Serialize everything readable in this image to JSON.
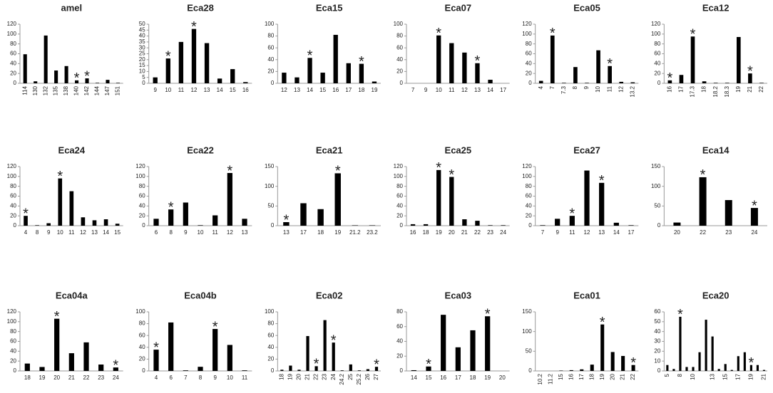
{
  "chart_data": [
    {
      "type": "bar",
      "title": "amel",
      "categories": [
        "114",
        "130",
        "132",
        "135",
        "138",
        "140",
        "142",
        "144",
        "147",
        "151"
      ],
      "values": [
        59,
        4,
        97,
        26,
        35,
        6,
        10,
        1,
        7,
        1
      ],
      "ylim": [
        0,
        120
      ],
      "yticks": [
        0,
        20,
        40,
        60,
        80,
        100,
        120
      ],
      "color": "#000000",
      "annotations": [
        {
          "text": "*",
          "x": "140"
        },
        {
          "text": "*",
          "x": "142"
        }
      ]
    },
    {
      "type": "bar",
      "title": "Eca28",
      "categories": [
        "9",
        "10",
        "11",
        "12",
        "13",
        "14",
        "15",
        "16"
      ],
      "values": [
        5,
        21,
        35,
        46,
        34,
        4,
        12,
        1
      ],
      "ylim": [
        0,
        50
      ],
      "yticks": [
        0,
        5,
        10,
        15,
        20,
        25,
        30,
        35,
        40,
        45,
        50
      ],
      "color": "#000000",
      "annotations": [
        {
          "text": "*",
          "x": "10"
        },
        {
          "text": "*",
          "x": "12"
        }
      ]
    },
    {
      "type": "bar",
      "title": "Eca15",
      "categories": [
        "12",
        "13",
        "14",
        "15",
        "16",
        "17",
        "18",
        "19"
      ],
      "values": [
        18,
        10,
        43,
        18,
        82,
        34,
        33,
        3
      ],
      "ylim": [
        0,
        100
      ],
      "yticks": [
        0,
        20,
        40,
        60,
        80,
        100
      ],
      "color": "#000000",
      "annotations": [
        {
          "text": "*",
          "x": "14"
        },
        {
          "text": "*",
          "x": "18"
        }
      ]
    },
    {
      "type": "bar",
      "title": "Eca07",
      "categories": [
        "7",
        "9",
        "10",
        "11",
        "12",
        "13",
        "14",
        "17"
      ],
      "values": [
        0,
        0,
        81,
        68,
        52,
        34,
        6,
        0
      ],
      "ylim": [
        0,
        100
      ],
      "yticks": [
        0,
        20,
        40,
        60,
        80,
        100
      ],
      "color": "#000000",
      "annotations": [
        {
          "text": "*",
          "x": "10"
        },
        {
          "text": "*",
          "x": "13"
        }
      ]
    },
    {
      "type": "bar",
      "title": "Eca05",
      "categories": [
        "4",
        "7",
        "7.3",
        "8",
        "9",
        "10",
        "11",
        "12",
        "13.2"
      ],
      "values": [
        5,
        97,
        1,
        33,
        1,
        67,
        35,
        3,
        2
      ],
      "ylim": [
        0,
        120
      ],
      "yticks": [
        0,
        20,
        40,
        60,
        80,
        100,
        120
      ],
      "color": "#000000",
      "annotations": [
        {
          "text": "*",
          "x": "7"
        },
        {
          "text": "*",
          "x": "11"
        }
      ]
    },
    {
      "type": "bar",
      "title": "Eca12",
      "categories": [
        "16",
        "17",
        "17.3",
        "18",
        "18.2",
        "18.3",
        "19",
        "21",
        "22"
      ],
      "values": [
        6,
        17,
        95,
        4,
        1,
        1,
        94,
        20,
        1
      ],
      "ylim": [
        0,
        120
      ],
      "yticks": [
        0,
        20,
        40,
        60,
        80,
        100,
        120
      ],
      "color": "#000000",
      "annotations": [
        {
          "text": "*",
          "x": "16"
        },
        {
          "text": "*",
          "x": "17.3"
        },
        {
          "text": "*",
          "x": "21"
        }
      ]
    },
    {
      "type": "bar",
      "title": "Eca24",
      "categories": [
        "4",
        "8",
        "9",
        "10",
        "11",
        "12",
        "13",
        "14",
        "15"
      ],
      "values": [
        20,
        1,
        5,
        96,
        70,
        17,
        11,
        13,
        4
      ],
      "ylim": [
        0,
        120
      ],
      "yticks": [
        0,
        20,
        40,
        60,
        80,
        100,
        120
      ],
      "color": "#000000",
      "annotations": [
        {
          "text": "*",
          "x": "4"
        },
        {
          "text": "*",
          "x": "10"
        }
      ]
    },
    {
      "type": "bar",
      "title": "Eca22",
      "categories": [
        "6",
        "8",
        "9",
        "10",
        "11",
        "12",
        "13"
      ],
      "values": [
        14,
        33,
        47,
        1,
        21,
        107,
        14
      ],
      "ylim": [
        0,
        120
      ],
      "yticks": [
        0,
        20,
        40,
        60,
        80,
        100,
        120
      ],
      "color": "#000000",
      "annotations": [
        {
          "text": "*",
          "x": "8"
        },
        {
          "text": "*",
          "x": "12"
        }
      ]
    },
    {
      "type": "bar",
      "title": "Eca21",
      "categories": [
        "13",
        "17",
        "18",
        "19",
        "21.2",
        "23.2"
      ],
      "values": [
        9,
        57,
        42,
        133,
        1,
        1
      ],
      "ylim": [
        0,
        150
      ],
      "yticks": [
        0,
        50,
        100,
        150
      ],
      "color": "#000000",
      "annotations": [
        {
          "text": "*",
          "x": "13"
        },
        {
          "text": "*",
          "x": "19"
        }
      ]
    },
    {
      "type": "bar",
      "title": "Eca25",
      "categories": [
        "16",
        "18",
        "19",
        "20",
        "21",
        "22",
        "23",
        "24"
      ],
      "values": [
        3,
        3,
        113,
        99,
        13,
        10,
        1,
        1
      ],
      "ylim": [
        0,
        120
      ],
      "yticks": [
        0,
        20,
        40,
        60,
        80,
        100,
        120
      ],
      "color": "#000000",
      "annotations": [
        {
          "text": "*",
          "x": "19"
        },
        {
          "text": "*",
          "x": "20"
        }
      ]
    },
    {
      "type": "bar",
      "title": "Eca27",
      "categories": [
        "7",
        "9",
        "11",
        "12",
        "13",
        "14",
        "17"
      ],
      "values": [
        1,
        14,
        20,
        112,
        87,
        6,
        1
      ],
      "ylim": [
        0,
        120
      ],
      "yticks": [
        0,
        20,
        40,
        60,
        80,
        100,
        120
      ],
      "color": "#000000",
      "annotations": [
        {
          "text": "*",
          "x": "11"
        },
        {
          "text": "*",
          "x": "13"
        }
      ]
    },
    {
      "type": "bar",
      "title": "Eca14",
      "categories": [
        "20",
        "22",
        "23",
        "24"
      ],
      "values": [
        8,
        123,
        65,
        45
      ],
      "ylim": [
        0,
        150
      ],
      "yticks": [
        0,
        50,
        100,
        150
      ],
      "color": "#000000",
      "annotations": [
        {
          "text": "*",
          "x": "22"
        },
        {
          "text": "*",
          "x": "24"
        }
      ]
    },
    {
      "type": "bar",
      "title": "Eca04a",
      "categories": [
        "18",
        "19",
        "20",
        "21",
        "22",
        "23",
        "24"
      ],
      "values": [
        15,
        8,
        106,
        36,
        58,
        13,
        7
      ],
      "ylim": [
        0,
        120
      ],
      "yticks": [
        0,
        20,
        40,
        60,
        80,
        100,
        120
      ],
      "color": "#000000",
      "annotations": [
        {
          "text": "*",
          "x": "20"
        },
        {
          "text": "*",
          "x": "24"
        }
      ]
    },
    {
      "type": "bar",
      "title": "Eca04b",
      "categories": [
        "4",
        "6",
        "7",
        "8",
        "9",
        "10",
        "11"
      ],
      "values": [
        36,
        82,
        1,
        7,
        71,
        44,
        1
      ],
      "ylim": [
        0,
        100
      ],
      "yticks": [
        0,
        20,
        40,
        60,
        80,
        100
      ],
      "color": "#000000",
      "annotations": [
        {
          "text": "*",
          "x": "4"
        },
        {
          "text": "*",
          "x": "9"
        }
      ]
    },
    {
      "type": "bar",
      "title": "Eca02",
      "categories": [
        "18",
        "19",
        "20",
        "21",
        "22",
        "23",
        "24",
        "24.2",
        "25",
        "25.2",
        "26",
        "27"
      ],
      "values": [
        2,
        9,
        2,
        59,
        8,
        86,
        48,
        1,
        11,
        1,
        3,
        7
      ],
      "ylim": [
        0,
        100
      ],
      "yticks": [
        0,
        20,
        40,
        60,
        80,
        100
      ],
      "color": "#000000",
      "annotations": [
        {
          "text": "*",
          "x": "22"
        },
        {
          "text": "*",
          "x": "24"
        },
        {
          "text": "*",
          "x": "27"
        }
      ]
    },
    {
      "type": "bar",
      "title": "Eca03",
      "categories": [
        "14",
        "15",
        "16",
        "17",
        "18",
        "19",
        "20"
      ],
      "values": [
        1,
        6,
        76,
        32,
        55,
        74,
        0
      ],
      "ylim": [
        0,
        80
      ],
      "yticks": [
        0,
        20,
        40,
        60,
        80
      ],
      "color": "#000000",
      "annotations": [
        {
          "text": "*",
          "x": "15"
        },
        {
          "text": "*",
          "x": "19"
        }
      ]
    },
    {
      "type": "bar",
      "title": "Eca01",
      "categories": [
        "10.2",
        "11.2",
        "15",
        "16",
        "17",
        "18",
        "19",
        "20",
        "21",
        "22"
      ],
      "values": [
        0,
        0,
        1,
        2,
        4,
        16,
        118,
        48,
        38,
        15
      ],
      "ylim": [
        0,
        150
      ],
      "yticks": [
        0,
        50,
        100,
        150
      ],
      "color": "#000000",
      "annotations": [
        {
          "text": "*",
          "x": "19"
        },
        {
          "text": "*",
          "x": "22"
        }
      ]
    },
    {
      "type": "bar",
      "title": "Eca20",
      "categories": [
        "5",
        null,
        "8",
        null,
        "10",
        null,
        null,
        "13",
        null,
        "15",
        null,
        "17",
        null,
        "19",
        null,
        "21"
      ],
      "values": [
        6,
        2,
        55,
        4,
        4,
        19,
        52,
        35,
        2,
        7,
        1,
        15,
        19,
        6,
        6,
        1
      ],
      "ylim": [
        0,
        60
      ],
      "yticks": [
        0,
        10,
        20,
        30,
        40,
        50,
        60
      ],
      "color": "#000000",
      "annotations": [
        {
          "text": "*",
          "x": "8"
        },
        {
          "text": "*",
          "x": "19"
        }
      ]
    }
  ]
}
